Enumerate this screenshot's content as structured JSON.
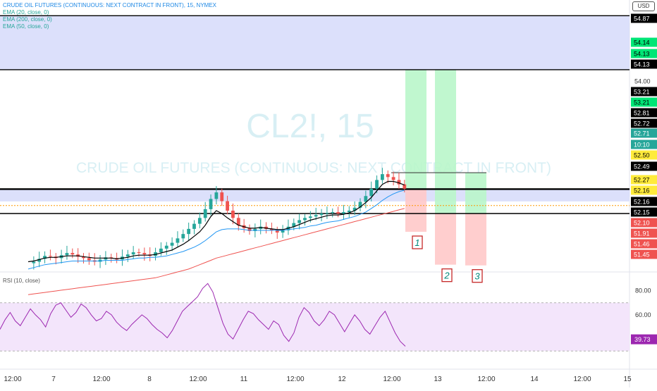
{
  "header": {
    "title": "CRUDE OIL FUTURES (CONTINUOUS: NEXT CONTRACT IN FRONT), 15, NYMEX",
    "indicators": [
      "EMA (20, close, 0)",
      "EMA (200, close, 0)",
      "EMA (50, close, 0)"
    ],
    "currency": "USD"
  },
  "watermark": {
    "symbol": "CL2!, 15",
    "name": "CRUDE OIL FUTURES (CONTINUOUS: NEXT CONTRACT IN FRONT)"
  },
  "rsi": {
    "label": "RSI (10, close)",
    "current": "39.73",
    "ticks": [
      "80.00",
      "60.00"
    ],
    "upper": 70,
    "lower": 30,
    "values": [
      48,
      56,
      62,
      55,
      51,
      58,
      65,
      60,
      56,
      50,
      61,
      68,
      70,
      64,
      58,
      62,
      69,
      66,
      60,
      55,
      57,
      63,
      60,
      54,
      50,
      47,
      52,
      56,
      60,
      57,
      52,
      48,
      45,
      41,
      47,
      55,
      63,
      67,
      71,
      75,
      82,
      86,
      79,
      66,
      53,
      44,
      40,
      48,
      56,
      63,
      61,
      56,
      52,
      48,
      55,
      52,
      43,
      38,
      45,
      58,
      66,
      62,
      55,
      51,
      56,
      63,
      60,
      53,
      46,
      53,
      60,
      55,
      48,
      44,
      51,
      58,
      63,
      54,
      45,
      38,
      34
    ]
  },
  "chart_data": {
    "type": "candlestick",
    "title": "CRUDE OIL FUTURES (CONTINUOUS: NEXT CONTRACT IN FRONT), 15, NYMEX",
    "x_ticks": [
      "12:00",
      "7",
      "12:00",
      "8",
      "12:00",
      "11",
      "12:00",
      "12",
      "12:00",
      "13",
      "12:00",
      "14",
      "12:00",
      "15"
    ],
    "price_series": [
      51.48,
      51.5,
      51.54,
      51.58,
      51.57,
      51.55,
      51.59,
      51.62,
      51.6,
      51.57,
      51.55,
      51.52,
      51.5,
      51.53,
      51.56,
      51.55,
      51.53,
      51.57,
      51.6,
      51.63,
      51.62,
      51.6,
      51.58,
      51.63,
      51.68,
      51.72,
      51.76,
      51.82,
      51.88,
      51.95,
      52.02,
      52.1,
      52.22,
      52.36,
      52.45,
      52.33,
      52.2,
      52.1,
      52.0,
      51.96,
      51.92,
      51.95,
      51.98,
      51.95,
      51.93,
      51.9,
      51.93,
      51.98,
      52.03,
      52.07,
      52.1,
      52.12,
      52.14,
      52.16,
      52.17,
      52.18,
      52.16,
      52.18,
      52.2,
      52.24,
      52.32,
      52.4,
      52.5,
      52.62,
      52.7,
      52.66,
      52.62,
      52.56,
      52.5
    ],
    "ema_20": [
      51.5,
      51.51,
      51.53,
      51.55,
      51.56,
      51.56,
      51.57,
      51.58,
      51.58,
      51.58,
      51.57,
      51.56,
      51.55,
      51.55,
      51.55,
      51.55,
      51.54,
      51.55,
      51.56,
      51.58,
      51.59,
      51.59,
      51.59,
      51.6,
      51.62,
      51.64,
      51.66,
      51.7,
      51.74,
      51.79,
      51.85,
      51.91,
      52.0,
      52.12,
      52.2,
      52.16,
      52.1,
      52.05,
      52.0,
      51.98,
      51.96,
      51.96,
      51.97,
      51.96,
      51.95,
      51.94,
      51.94,
      51.96,
      51.98,
      52.01,
      52.04,
      52.07,
      52.09,
      52.11,
      52.13,
      52.14,
      52.14,
      52.15,
      52.17,
      52.2,
      52.25,
      52.31,
      52.38,
      52.47,
      52.56,
      52.6,
      52.6,
      52.58,
      52.55
    ],
    "ema_50": [
      51.4,
      51.42,
      51.44,
      51.46,
      51.47,
      51.48,
      51.49,
      51.5,
      51.51,
      51.51,
      51.51,
      51.51,
      51.51,
      51.51,
      51.52,
      51.52,
      51.52,
      51.52,
      51.53,
      51.54,
      51.55,
      51.55,
      51.56,
      51.56,
      51.57,
      51.58,
      51.6,
      51.62,
      51.64,
      51.67,
      51.7,
      51.74,
      51.79,
      51.85,
      51.91,
      51.94,
      51.95,
      51.95,
      51.95,
      51.94,
      51.93,
      51.93,
      51.93,
      51.93,
      51.93,
      51.93,
      51.93,
      51.94,
      51.95,
      51.96,
      51.97,
      51.99,
      52.0,
      52.02,
      52.04,
      52.05,
      52.06,
      52.08,
      52.1,
      52.12,
      52.15,
      52.18,
      52.23,
      52.28,
      52.34,
      52.39,
      52.43,
      52.46,
      52.48
    ],
    "ema_200": [
      51.05,
      51.06,
      51.07,
      51.08,
      51.09,
      51.1,
      51.11,
      51.12,
      51.13,
      51.14,
      51.15,
      51.16,
      51.17,
      51.18,
      51.19,
      51.2,
      51.21,
      51.22,
      51.23,
      51.24,
      51.25,
      51.26,
      51.27,
      51.28,
      51.3,
      51.32,
      51.34,
      51.36,
      51.38,
      51.4,
      51.43,
      51.46,
      51.49,
      51.52,
      51.55,
      51.57,
      51.59,
      51.61,
      51.63,
      51.65,
      51.67,
      51.69,
      51.71,
      51.73,
      51.75,
      51.77,
      51.79,
      51.81,
      51.83,
      51.85,
      51.87,
      51.89,
      51.91,
      51.93,
      51.95,
      51.97,
      51.99,
      52.01,
      52.03,
      52.05,
      52.07,
      52.09,
      52.11,
      52.13,
      52.15,
      52.17,
      52.19,
      52.21,
      52.23
    ],
    "y_ticks": [
      "54.00"
    ],
    "price_labels": [
      {
        "text": "54.87",
        "style": "box"
      },
      {
        "text": "54.14",
        "style": "green"
      },
      {
        "text": "54.13",
        "style": "green"
      },
      {
        "text": "54.13",
        "style": "box"
      },
      {
        "text": "53.21",
        "style": "box"
      },
      {
        "text": "53.21",
        "style": "green"
      },
      {
        "text": "52.81",
        "style": "box"
      },
      {
        "text": "52.72",
        "style": "box"
      },
      {
        "text": "52.71",
        "style": "teal"
      },
      {
        "text": "10:10",
        "style": "teal"
      },
      {
        "text": "52.50",
        "style": "yellow"
      },
      {
        "text": "52.49",
        "style": "box"
      },
      {
        "text": "52.27",
        "style": "yellow"
      },
      {
        "text": "52.16",
        "style": "yellow"
      },
      {
        "text": "52.16",
        "style": "box"
      },
      {
        "text": "52.15",
        "style": "box"
      },
      {
        "text": "52.10",
        "style": "red"
      },
      {
        "text": "51.91",
        "style": "red"
      },
      {
        "text": "51.46",
        "style": "red"
      },
      {
        "text": "51.45",
        "style": "red"
      }
    ],
    "zones": [
      {
        "from": 54.13,
        "to": 54.87
      },
      {
        "from": 52.49,
        "to": 52.5
      }
    ],
    "levels": [
      54.87,
      54.13,
      52.5,
      52.49,
      52.16
    ],
    "trades": [
      {
        "label": "1",
        "entry": 52.49,
        "target": 54.13,
        "stop": 51.91
      },
      {
        "label": "2",
        "entry": 52.16,
        "target": 54.13,
        "stop": 51.46
      },
      {
        "label": "3",
        "entry": 52.16,
        "target": 52.72,
        "stop": 51.45
      }
    ],
    "colors": {
      "up": "#26a69a",
      "down": "#ef5350",
      "ema20": "#000000",
      "ema50": "#2196f3",
      "ema200": "#ef5350",
      "rsi": "#9c27b0",
      "zone": "#d6dbfa",
      "target": "#b9f6ca",
      "stop": "#ffc9c9"
    }
  }
}
